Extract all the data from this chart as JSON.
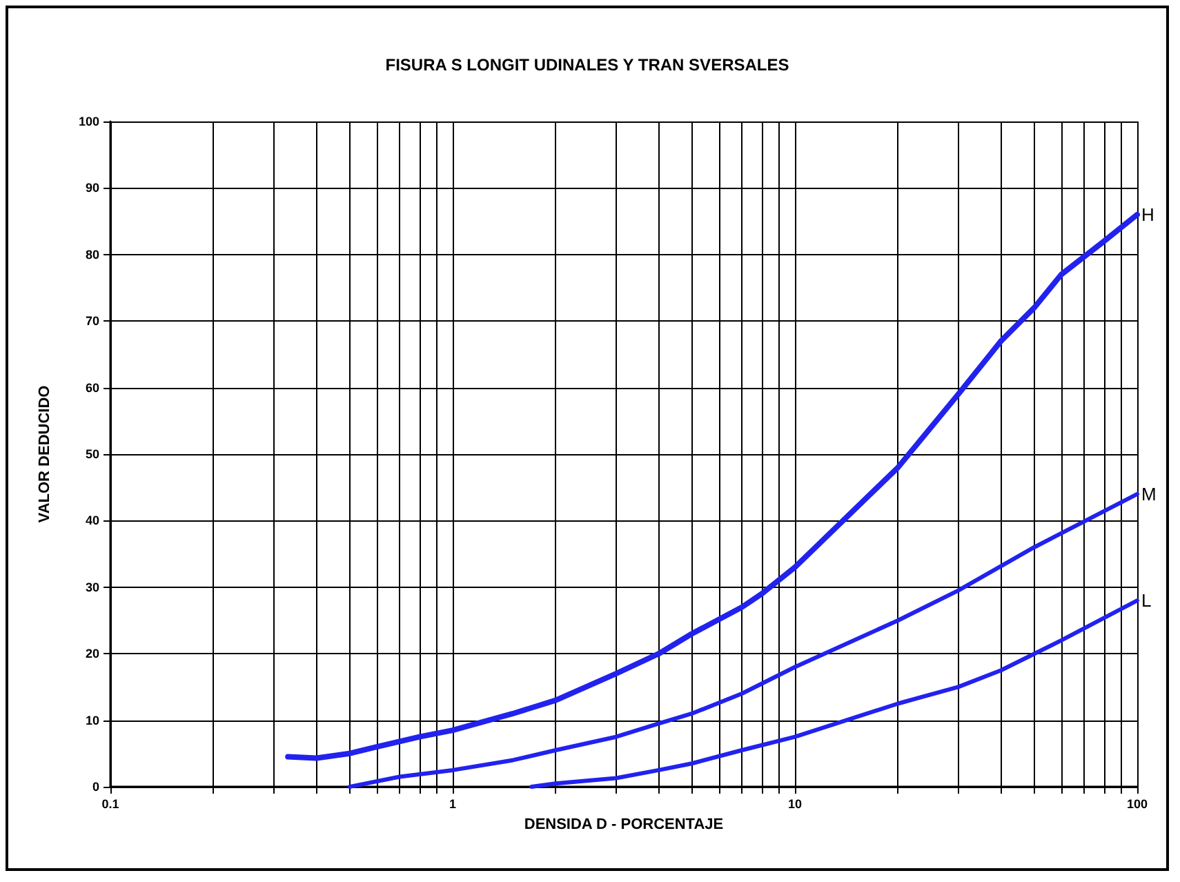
{
  "chart_data": {
    "type": "line",
    "title": "FISURA S LONGIT UDINALES Y TRAN SVERSALES",
    "xlabel": "DENSIDA D - PORCENTAJE",
    "ylabel": "VALOR DEDUCIDO",
    "log": "x",
    "grid": true,
    "legend": false,
    "marker": "none",
    "line_style": "solid",
    "xlim": [
      0.1,
      100
    ],
    "xticks": [
      0.1,
      {
        "value": 0.2,
        "label": null
      },
      {
        "value": 0.3,
        "label": null
      },
      {
        "value": 0.4,
        "label": null
      },
      {
        "value": 0.5,
        "label": null
      },
      {
        "value": 0.6,
        "label": null
      },
      {
        "value": 0.7,
        "label": null
      },
      {
        "value": 0.8,
        "label": null
      },
      {
        "value": 0.9,
        "label": null
      },
      1,
      {
        "value": 2,
        "label": null
      },
      {
        "value": 3,
        "label": null
      },
      {
        "value": 4,
        "label": null
      },
      {
        "value": 5,
        "label": null
      },
      {
        "value": 6,
        "label": null
      },
      {
        "value": 7,
        "label": null
      },
      {
        "value": 8,
        "label": null
      },
      {
        "value": 9,
        "label": null
      },
      10,
      {
        "value": 20,
        "label": null
      },
      {
        "value": 30,
        "label": null
      },
      {
        "value": 40,
        "label": null
      },
      {
        "value": 50,
        "label": null
      },
      {
        "value": 60,
        "label": null
      },
      {
        "value": 70,
        "label": null
      },
      {
        "value": 80,
        "label": null
      },
      {
        "value": 90,
        "label": null
      },
      100
    ],
    "ylim": [
      0,
      100
    ],
    "yticks": [
      0,
      10,
      20,
      30,
      40,
      50,
      60,
      70,
      80,
      90,
      100
    ],
    "series": [
      {
        "name": "H",
        "color": "#2222ee",
        "x": [
          0.33,
          0.4,
          0.5,
          0.6,
          0.8,
          1,
          1.5,
          2,
          3,
          4,
          5,
          7,
          8,
          10,
          20,
          30,
          40,
          50,
          60,
          80,
          100
        ],
        "values": [
          4.5,
          4.3,
          5,
          6,
          7.5,
          8.5,
          11,
          13,
          17,
          20,
          23,
          27,
          29,
          33,
          48,
          59,
          67,
          72,
          77,
          82,
          86
        ]
      },
      {
        "name": "M",
        "color": "#2222ee",
        "x": [
          0.5,
          0.7,
          1,
          1.5,
          2,
          3,
          4,
          5,
          7,
          10,
          20,
          30,
          50,
          100
        ],
        "values": [
          0,
          1.5,
          2.5,
          4,
          5.5,
          7.5,
          9.5,
          11,
          14,
          18,
          25,
          29.5,
          36,
          44
        ]
      },
      {
        "name": "L",
        "color": "#2222ee",
        "x": [
          1.7,
          2,
          3,
          4,
          5,
          7,
          10,
          20,
          30,
          40,
          60,
          100
        ],
        "values": [
          0,
          0.5,
          1.3,
          2.5,
          3.5,
          5.5,
          7.5,
          12.5,
          15,
          17.5,
          22,
          28
        ]
      }
    ]
  }
}
